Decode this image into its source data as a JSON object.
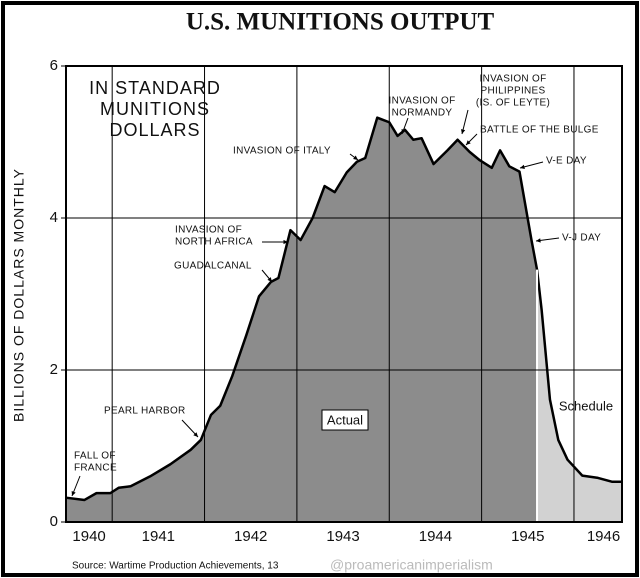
{
  "chart_data": {
    "type": "area",
    "title": "U.S. MUNITIONS OUTPUT",
    "subtitle": [
      "IN STANDARD",
      "MUNITIONS",
      "DOLLARS"
    ],
    "ylabel": "BILLIONS OF DOLLARS MONTHLY",
    "source": "Source: Wartime Production Achievements, 13",
    "watermark": "@proamericanimperialism",
    "xlim": [
      1940.5,
      1946.52
    ],
    "xticks": [
      {
        "value": 1940.75,
        "label": "1940"
      },
      {
        "value": 1941.5,
        "label": "1941"
      },
      {
        "value": 1942.5,
        "label": "1942"
      },
      {
        "value": 1943.5,
        "label": "1943"
      },
      {
        "value": 1944.5,
        "label": "1944"
      },
      {
        "value": 1945.5,
        "label": "1945"
      },
      {
        "value": 1946.32,
        "label": "1946"
      }
    ],
    "xgrid": [
      1941,
      1942,
      1943,
      1944,
      1945,
      1946
    ],
    "ylim": [
      0,
      6
    ],
    "yticks": [
      0,
      2,
      4,
      6
    ],
    "grid": true,
    "series": [
      {
        "name": "Actual",
        "color": "#8c8c8c",
        "x": [
          1940.5,
          1940.7,
          1940.83,
          1940.98,
          1941.07,
          1941.2,
          1941.41,
          1941.63,
          1941.85,
          1941.96,
          1942.07,
          1942.17,
          1942.3,
          1942.45,
          1942.59,
          1942.72,
          1942.8,
          1942.93,
          1943.04,
          1943.17,
          1943.3,
          1943.41,
          1943.54,
          1943.65,
          1943.74,
          1943.87,
          1944.0,
          1944.09,
          1944.17,
          1944.26,
          1944.35,
          1944.48,
          1944.63,
          1944.74,
          1944.87,
          1944.98,
          1945.11,
          1945.2,
          1945.3,
          1945.41,
          1945.54,
          1945.6
        ],
        "values": [
          0.32,
          0.29,
          0.38,
          0.38,
          0.45,
          0.47,
          0.6,
          0.76,
          0.95,
          1.08,
          1.41,
          1.53,
          1.92,
          2.45,
          2.97,
          3.16,
          3.21,
          3.84,
          3.71,
          4.0,
          4.42,
          4.34,
          4.6,
          4.74,
          4.79,
          5.32,
          5.26,
          5.08,
          5.16,
          5.03,
          5.05,
          4.71,
          4.89,
          5.03,
          4.87,
          4.76,
          4.66,
          4.89,
          4.68,
          4.61,
          3.71,
          3.32
        ]
      },
      {
        "name": "Schedule",
        "color": "#d2d2d2",
        "x": [
          1945.6,
          1945.65,
          1945.74,
          1945.83,
          1945.93,
          1946.09,
          1946.26,
          1946.41,
          1946.52
        ],
        "values": [
          3.32,
          2.79,
          1.61,
          1.08,
          0.82,
          0.61,
          0.58,
          0.53,
          0.53
        ]
      }
    ],
    "annotations": [
      {
        "lines": [
          "FALL OF",
          "FRANCE"
        ]
      },
      {
        "lines": [
          "PEARL HARBOR"
        ]
      },
      {
        "lines": [
          "GUADALCANAL"
        ]
      },
      {
        "lines": [
          "INVASION OF",
          "NORTH AFRICA"
        ]
      },
      {
        "lines": [
          "INVASION OF ITALY"
        ]
      },
      {
        "lines": [
          "INVASION OF",
          "NORMANDY"
        ]
      },
      {
        "lines": [
          "INVASION OF",
          "PHILIPPINES",
          "(IS. OF LEYTE)"
        ]
      },
      {
        "lines": [
          "BATTLE OF THE BULGE"
        ]
      },
      {
        "lines": [
          "V-E DAY"
        ]
      },
      {
        "lines": [
          "V-J DAY"
        ]
      }
    ]
  }
}
